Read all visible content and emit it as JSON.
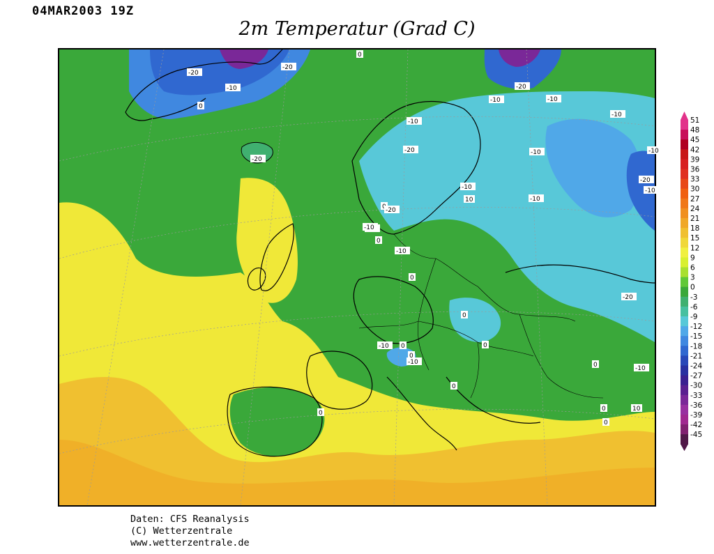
{
  "header": {
    "datetime": "04MAR2003 19Z",
    "title": "2m Temperatur (Grad C)"
  },
  "footer": {
    "line1": "Daten: CFS Reanalysis",
    "line2": "(C) Wetterzentrale",
    "line3": "www.wetterzentrale.de"
  },
  "legend": {
    "labels": [
      "51",
      "48",
      "45",
      "42",
      "39",
      "36",
      "33",
      "30",
      "27",
      "24",
      "21",
      "18",
      "15",
      "12",
      "9",
      "6",
      "3",
      "0",
      "-3",
      "-6",
      "-9",
      "-12",
      "-15",
      "-18",
      "-21",
      "-24",
      "-27",
      "-30",
      "-33",
      "-36",
      "-39",
      "-42",
      "-45"
    ],
    "colors": [
      "#e2328a",
      "#c8105a",
      "#b00020",
      "#c81818",
      "#d82020",
      "#e03020",
      "#e84818",
      "#f06010",
      "#f07818",
      "#f09020",
      "#f0a828",
      "#f0c030",
      "#f0d838",
      "#f0f040",
      "#d8f030",
      "#a8e030",
      "#60c838",
      "#3aa83a",
      "#40b070",
      "#48c0a0",
      "#58c8d8",
      "#50a8e8",
      "#4088e0",
      "#3068d0",
      "#2848b8",
      "#2830a0",
      "#3a2090",
      "#5a2090",
      "#7a2898",
      "#9830a0",
      "#a02890",
      "#802070",
      "#501848"
    ]
  },
  "map": {
    "contour_labels": [
      "-20",
      "-20",
      "-10",
      "0",
      "0",
      "-10",
      "-20",
      "-10",
      "-10",
      "-10",
      "-20",
      "-10",
      "-10",
      "-10",
      "-20",
      "-20",
      "0",
      "-10",
      "10",
      "-10",
      "-10",
      "-20",
      "-10",
      "-10",
      "0",
      "0",
      "0",
      "-10",
      "0",
      "0",
      "-10",
      "-20",
      "0",
      "0",
      "0",
      "0",
      "-10",
      "10",
      "0",
      "0",
      "10"
    ]
  }
}
